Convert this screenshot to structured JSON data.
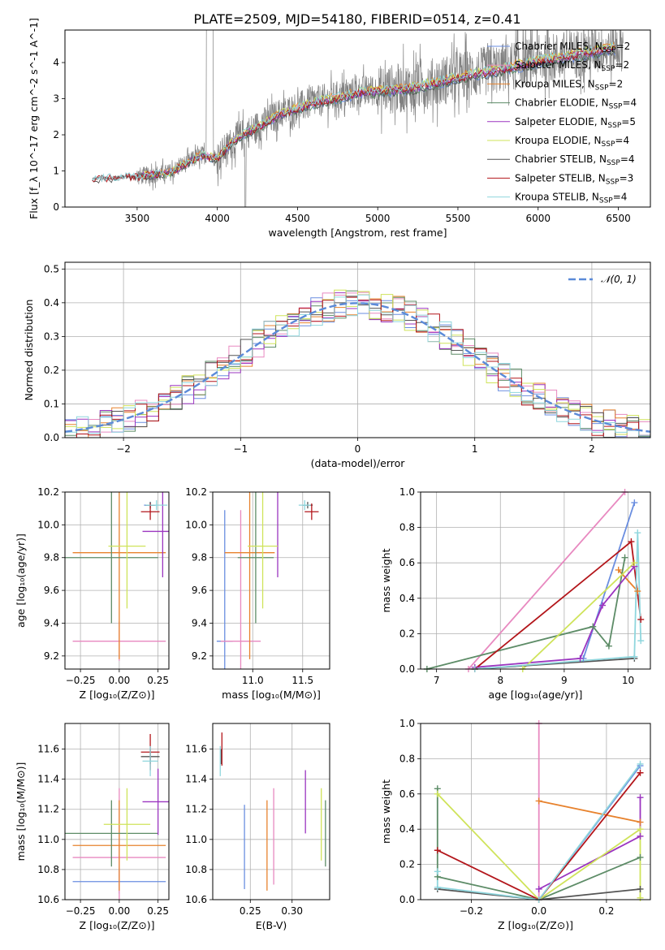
{
  "figure_title": "PLATE=2509, MJD=54180, FIBERID=0514, z=0.41",
  "colors": {
    "Chabrier MILES": "#6a8ee0",
    "Salpeter MILES": "#e889c0",
    "Kroupa MILES": "#e7822d",
    "Chabrier ELODIE": "#5d8c67",
    "Salpeter ELODIE": "#9b35c0",
    "Kroupa ELODIE": "#cfe35a",
    "Chabrier STELIB": "#555555",
    "Salpeter STELIB": "#b3161b",
    "Kroupa STELIB": "#8fd6dd",
    "data": "#808080",
    "gaussian": "#5b8ad8"
  },
  "chart_data": [
    {
      "id": "spectrum",
      "type": "line",
      "title": "PLATE=2509, MJD=54180, FIBERID=0514, z=0.41",
      "xlabel": "wavelength [Angstrom, rest frame]",
      "ylabel": "Flux [f_λ 10^-17 erg cm^-2 s^-1 A^-1]",
      "xlim": [
        3050,
        6700
      ],
      "ylim": [
        0,
        4.9
      ],
      "xticks": [
        3500,
        4000,
        4500,
        5000,
        5500,
        6000,
        6500
      ],
      "yticks": [
        0,
        1,
        2,
        3,
        4
      ],
      "legend_position": "top-right",
      "legend": [
        {
          "name": "Chabrier MILES",
          "label": "Chabrier MILES, N",
          "sub": "SSP",
          "tail": "=2"
        },
        {
          "name": "Salpeter MILES",
          "label": "Salpeter MILES, N",
          "sub": "SSP",
          "tail": "=2"
        },
        {
          "name": "Kroupa MILES",
          "label": "Kroupa MILES, N",
          "sub": "SSP",
          "tail": "=2"
        },
        {
          "name": "Chabrier ELODIE",
          "label": "Chabrier ELODIE, N",
          "sub": "SSP",
          "tail": "=4"
        },
        {
          "name": "Salpeter ELODIE",
          "label": "Salpeter ELODIE, N",
          "sub": "SSP",
          "tail": "=5"
        },
        {
          "name": "Kroupa ELODIE",
          "label": "Kroupa ELODIE, N",
          "sub": "SSP",
          "tail": "=4"
        },
        {
          "name": "Chabrier STELIB",
          "label": "Chabrier STELIB, N",
          "sub": "SSP",
          "tail": "=4"
        },
        {
          "name": "Salpeter STELIB",
          "label": "Salpeter STELIB, N",
          "sub": "SSP",
          "tail": "=3"
        },
        {
          "name": "Kroupa STELIB",
          "label": "Kroupa STELIB, N",
          "sub": "SSP",
          "tail": "=4"
        }
      ],
      "data_start": 3220,
      "data_end": 6530,
      "model_start_elodie": 3530,
      "continuum_anchors": [
        [
          3220,
          0.78
        ],
        [
          3500,
          0.85
        ],
        [
          3700,
          0.95
        ],
        [
          3900,
          1.45
        ],
        [
          4000,
          1.35
        ],
        [
          4100,
          1.85
        ],
        [
          4400,
          2.6
        ],
        [
          4600,
          2.9
        ],
        [
          4900,
          3.2
        ],
        [
          5200,
          3.3
        ],
        [
          5500,
          3.6
        ],
        [
          6000,
          4.05
        ],
        [
          6500,
          4.45
        ]
      ]
    },
    {
      "id": "residuals",
      "type": "histogram",
      "xlabel": "(data-model)/error",
      "ylabel": "Normed distribution",
      "xlim": [
        -2.5,
        2.5
      ],
      "ylim": [
        0,
        0.52
      ],
      "xticks": [
        -2,
        -1,
        0,
        1,
        2
      ],
      "xtick_labels": [
        "−2",
        "−1",
        "0",
        "1",
        "2"
      ],
      "yticks": [
        0.0,
        0.1,
        0.2,
        0.3,
        0.4,
        0.5
      ],
      "ytick_labels": [
        "0.0",
        "0.1",
        "0.2",
        "0.3",
        "0.4",
        "0.5"
      ],
      "bin_width": 0.1,
      "bin_start": -2.5,
      "legend_position": "top-right",
      "legend": [
        {
          "name": "gaussian",
          "label": "𝒩(0, 1)"
        }
      ]
    },
    {
      "id": "age_vs_Z",
      "type": "scatter",
      "xlabel": "Z [log₁₀(Z/Z⊙)]",
      "ylabel": "age  [log₁₀(age/yr)]",
      "xlim": [
        -0.35,
        0.32
      ],
      "ylim": [
        9.12,
        10.2
      ],
      "xticks": [
        -0.25,
        0,
        0.25
      ],
      "xtick_labels": [
        "−0.25",
        "0.00",
        "0.25"
      ],
      "yticks": [
        9.2,
        9.4,
        9.6,
        9.8,
        10.0,
        10.2
      ],
      "ytick_labels": [
        "9.2",
        "9.4",
        "9.6",
        "9.8",
        "10.0",
        "10.2"
      ],
      "points": [
        {
          "name": "Chabrier MILES",
          "x": 0.2,
          "xerr": 0.04,
          "y": 10.12,
          "yerr": 0.02
        },
        {
          "name": "Salpeter MILES",
          "x": 0.0,
          "xerr": 0.3,
          "y": 9.29,
          "yerr": 0.12
        },
        {
          "name": "Kroupa MILES",
          "x": 0.0,
          "xerr": 0.3,
          "y": 9.83,
          "yerr": 0.65
        },
        {
          "name": "Chabrier ELODIE",
          "x": -0.05,
          "xerr": 0.3,
          "y": 9.8,
          "yerr": 0.4
        },
        {
          "name": "Salpeter ELODIE",
          "x": 0.28,
          "xerr": 0.13,
          "y": 9.96,
          "yerr": 0.28
        },
        {
          "name": "Kroupa ELODIE",
          "x": 0.05,
          "xerr": 0.12,
          "y": 9.87,
          "yerr": 0.38
        },
        {
          "name": "Chabrier STELIB",
          "x": 0.2,
          "xerr": 0.03,
          "y": 10.12,
          "yerr": 0.02
        },
        {
          "name": "Salpeter STELIB",
          "x": 0.2,
          "xerr": 0.06,
          "y": 10.08,
          "yerr": 0.05
        },
        {
          "name": "Kroupa STELIB",
          "x": 0.24,
          "xerr": 0.07,
          "y": 10.12,
          "yerr": 0.03
        }
      ]
    },
    {
      "id": "age_vs_mass",
      "type": "scatter",
      "xlabel": "mass [log₁₀(M/M⊙)]",
      "ylabel": "",
      "xlim": [
        10.6,
        11.77
      ],
      "ylim": [
        9.12,
        10.2
      ],
      "xticks": [
        11.0,
        11.5
      ],
      "xtick_labels": [
        "11.0",
        "11.5"
      ],
      "yticks": [
        9.2,
        9.4,
        9.6,
        9.8,
        10.0,
        10.2
      ],
      "ytick_labels": [
        "9.2",
        "9.4",
        "9.6",
        "9.8",
        "10.0",
        "10.2"
      ],
      "points": [
        {
          "name": "Chabrier MILES",
          "x": 10.72,
          "xerr": 0.08,
          "y": 9.29,
          "yerr": 0.8
        },
        {
          "name": "Salpeter MILES",
          "x": 10.88,
          "xerr": 0.2,
          "y": 9.29,
          "yerr": 0.8
        },
        {
          "name": "Kroupa MILES",
          "x": 10.97,
          "xerr": 0.25,
          "y": 9.83,
          "yerr": 0.65
        },
        {
          "name": "Chabrier ELODIE",
          "x": 11.03,
          "xerr": 0.18,
          "y": 9.8,
          "yerr": 0.4
        },
        {
          "name": "Salpeter ELODIE",
          "x": 11.25,
          "xerr": 0.0,
          "y": 9.96,
          "yerr": 0.28
        },
        {
          "name": "Kroupa ELODIE",
          "x": 11.1,
          "xerr": 0.15,
          "y": 9.87,
          "yerr": 0.38
        },
        {
          "name": "Chabrier STELIB",
          "x": 11.55,
          "xerr": 0.05,
          "y": 10.12,
          "yerr": 0.02
        },
        {
          "name": "Salpeter STELIB",
          "x": 11.59,
          "xerr": 0.07,
          "y": 10.08,
          "yerr": 0.05
        },
        {
          "name": "Kroupa STELIB",
          "x": 11.52,
          "xerr": 0.06,
          "y": 10.12,
          "yerr": 0.03
        }
      ]
    },
    {
      "id": "weight_vs_age",
      "type": "line",
      "xlabel": "age  [log₁₀(age/yr)]",
      "ylabel": "mass weight",
      "xlim": [
        6.75,
        10.35
      ],
      "ylim": [
        0,
        1.0
      ],
      "xticks": [
        7,
        8,
        9,
        10
      ],
      "xtick_labels": [
        "7",
        "8",
        "9",
        "10"
      ],
      "yticks": [
        0.0,
        0.2,
        0.4,
        0.6,
        0.8,
        1.0
      ],
      "ytick_labels": [
        "0.0",
        "0.2",
        "0.4",
        "0.6",
        "0.8",
        "1.0"
      ],
      "series": [
        {
          "name": "Chabrier MILES",
          "points": [
            [
              9.3,
              0.06
            ],
            [
              10.1,
              0.94
            ]
          ]
        },
        {
          "name": "Salpeter MILES",
          "points": [
            [
              7.5,
              0.0
            ],
            [
              9.95,
              1.0
            ]
          ]
        },
        {
          "name": "Kroupa MILES",
          "points": [
            [
              9.85,
              0.56
            ],
            [
              10.15,
              0.44
            ]
          ]
        },
        {
          "name": "Chabrier ELODIE",
          "points": [
            [
              6.85,
              0.0
            ],
            [
              9.45,
              0.24
            ],
            [
              9.7,
              0.13
            ],
            [
              9.95,
              0.63
            ]
          ]
        },
        {
          "name": "Salpeter ELODIE",
          "points": [
            [
              7.6,
              0.01
            ],
            [
              9.25,
              0.06
            ],
            [
              9.6,
              0.36
            ],
            [
              10.1,
              0.58
            ]
          ]
        },
        {
          "name": "Kroupa ELODIE",
          "points": [
            [
              8.35,
              0.0
            ],
            [
              10.1,
              0.6
            ]
          ]
        },
        {
          "name": "Chabrier STELIB",
          "points": [
            [
              7.6,
              0.0
            ],
            [
              10.1,
              0.06
            ]
          ]
        },
        {
          "name": "Salpeter STELIB",
          "points": [
            [
              7.6,
              0.0
            ],
            [
              10.05,
              0.72
            ],
            [
              10.2,
              0.28
            ]
          ]
        },
        {
          "name": "Kroupa STELIB",
          "points": [
            [
              7.6,
              0.0
            ],
            [
              10.1,
              0.07
            ],
            [
              10.15,
              0.77
            ],
            [
              10.2,
              0.16
            ]
          ]
        }
      ]
    },
    {
      "id": "mass_vs_Z",
      "type": "scatter",
      "xlabel": "Z [log₁₀(Z/Z⊙)]",
      "ylabel": "mass [log₁₀(M/M⊙)]",
      "xlim": [
        -0.35,
        0.32
      ],
      "ylim": [
        10.6,
        11.77
      ],
      "xticks": [
        -0.25,
        0,
        0.25
      ],
      "xtick_labels": [
        "−0.25",
        "0.00",
        "0.25"
      ],
      "yticks": [
        10.6,
        10.8,
        11.0,
        11.2,
        11.4,
        11.6
      ],
      "ytick_labels": [
        "10.6",
        "10.8",
        "11.0",
        "11.2",
        "11.4",
        "11.6"
      ],
      "points": [
        {
          "name": "Chabrier MILES",
          "x": 0.0,
          "xerr": 0.3,
          "y": 10.72,
          "yerr": 0.08
        },
        {
          "name": "Salpeter MILES",
          "x": 0.0,
          "xerr": 0.3,
          "y": 10.88,
          "yerr": 0.46
        },
        {
          "name": "Kroupa MILES",
          "x": 0.0,
          "xerr": 0.3,
          "y": 10.96,
          "yerr": 0.3
        },
        {
          "name": "Chabrier ELODIE",
          "x": -0.05,
          "xerr": 0.3,
          "y": 11.04,
          "yerr": 0.22
        },
        {
          "name": "Salpeter ELODIE",
          "x": 0.25,
          "xerr": 0.1,
          "y": 11.25,
          "yerr": 0.22
        },
        {
          "name": "Kroupa ELODIE",
          "x": 0.05,
          "xerr": 0.15,
          "y": 11.1,
          "yerr": 0.24
        },
        {
          "name": "Chabrier STELIB",
          "x": 0.2,
          "xerr": 0.06,
          "y": 11.55,
          "yerr": 0.05
        },
        {
          "name": "Salpeter STELIB",
          "x": 0.2,
          "xerr": 0.06,
          "y": 11.58,
          "yerr": 0.12
        },
        {
          "name": "Kroupa STELIB",
          "x": 0.2,
          "xerr": 0.05,
          "y": 11.52,
          "yerr": 0.1
        }
      ]
    },
    {
      "id": "mass_vs_ebv",
      "type": "scatter",
      "xlabel": "E(B-V)",
      "ylabel": "",
      "xlim": [
        0.205,
        0.345
      ],
      "ylim": [
        10.6,
        11.77
      ],
      "xticks": [
        0.25,
        0.3
      ],
      "xtick_labels": [
        "0.25",
        "0.30"
      ],
      "yticks": [
        10.6,
        10.8,
        11.0,
        11.2,
        11.4,
        11.6
      ],
      "ytick_labels": [
        "10.6",
        "10.8",
        "11.0",
        "11.2",
        "11.4",
        "11.6"
      ],
      "points": [
        {
          "name": "Chabrier MILES",
          "x": 0.243,
          "xerr": 0.0,
          "y": 10.95,
          "yerr": 0.28
        },
        {
          "name": "Salpeter MILES",
          "x": 0.278,
          "xerr": 0.0,
          "y": 11.02,
          "yerr": 0.32
        },
        {
          "name": "Kroupa MILES",
          "x": 0.27,
          "xerr": 0.0,
          "y": 10.96,
          "yerr": 0.3
        },
        {
          "name": "Chabrier ELODIE",
          "x": 0.34,
          "xerr": 0.0,
          "y": 11.04,
          "yerr": 0.22
        },
        {
          "name": "Salpeter ELODIE",
          "x": 0.316,
          "xerr": 0.0,
          "y": 11.25,
          "yerr": 0.21
        },
        {
          "name": "Kroupa ELODIE",
          "x": 0.335,
          "xerr": 0.0,
          "y": 11.1,
          "yerr": 0.24
        },
        {
          "name": "Chabrier STELIB",
          "x": 0.215,
          "xerr": 0.0,
          "y": 11.55,
          "yerr": 0.05
        },
        {
          "name": "Salpeter STELIB",
          "x": 0.216,
          "xerr": 0.0,
          "y": 11.6,
          "yerr": 0.11
        },
        {
          "name": "Kroupa STELIB",
          "x": 0.214,
          "xerr": 0.0,
          "y": 11.52,
          "yerr": 0.1
        }
      ]
    },
    {
      "id": "weight_vs_Z",
      "type": "line",
      "xlabel": "Z [log₁₀(Z/Z⊙)]",
      "ylabel": "mass weight",
      "xlim": [
        -0.35,
        0.33
      ],
      "ylim": [
        0,
        1.0
      ],
      "xticks": [
        -0.2,
        0.0,
        0.2
      ],
      "xtick_labels": [
        "−0.2",
        "0.0",
        "0.2"
      ],
      "yticks": [
        0.0,
        0.2,
        0.4,
        0.6,
        0.8,
        1.0
      ],
      "ytick_labels": [
        "0.0",
        "0.2",
        "0.4",
        "0.6",
        "0.8",
        "1.0"
      ],
      "series": [
        {
          "name": "Chabrier MILES",
          "points": [
            [
              0.0,
              0.0
            ],
            [
              0.3,
              0.76
            ]
          ]
        },
        {
          "name": "Salpeter MILES",
          "points": [
            [
              0.0,
              0.0
            ],
            [
              0.0,
              1.0
            ]
          ]
        },
        {
          "name": "Kroupa MILES",
          "points": [
            [
              0.0,
              0.56
            ],
            [
              0.3,
              0.44
            ]
          ]
        },
        {
          "name": "Chabrier ELODIE",
          "points": [
            [
              -0.3,
              0.63
            ],
            [
              -0.3,
              0.13
            ],
            [
              0.0,
              0.0
            ],
            [
              0.3,
              0.24
            ]
          ]
        },
        {
          "name": "Salpeter ELODIE",
          "points": [
            [
              0.0,
              0.06
            ],
            [
              0.3,
              0.36
            ],
            [
              0.3,
              0.58
            ]
          ]
        },
        {
          "name": "Kroupa ELODIE",
          "points": [
            [
              -0.3,
              0.6
            ],
            [
              0.0,
              0.0
            ],
            [
              0.3,
              0.4
            ],
            [
              0.3,
              0.01
            ]
          ]
        },
        {
          "name": "Chabrier STELIB",
          "points": [
            [
              -0.3,
              0.06
            ],
            [
              0.0,
              0.0
            ],
            [
              0.3,
              0.06
            ]
          ]
        },
        {
          "name": "Salpeter STELIB",
          "points": [
            [
              -0.3,
              0.28
            ],
            [
              0.0,
              0.0
            ],
            [
              0.3,
              0.72
            ]
          ]
        },
        {
          "name": "Kroupa STELIB",
          "points": [
            [
              -0.3,
              0.16
            ],
            [
              -0.3,
              0.07
            ],
            [
              0.0,
              0.0
            ],
            [
              0.3,
              0.77
            ]
          ]
        }
      ]
    }
  ]
}
